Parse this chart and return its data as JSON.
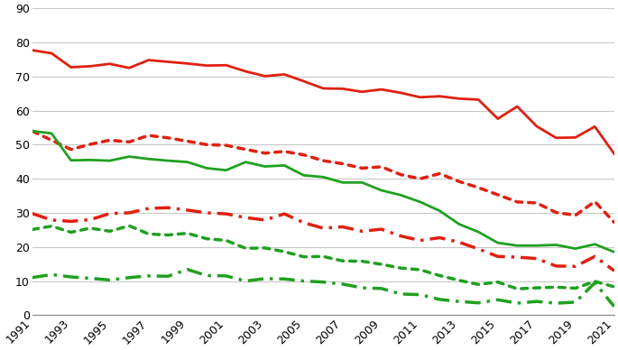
{
  "years": [
    1991,
    1992,
    1993,
    1994,
    1995,
    1996,
    1997,
    1998,
    1999,
    2000,
    2001,
    2002,
    2003,
    2004,
    2005,
    2006,
    2007,
    2008,
    2009,
    2010,
    2011,
    2012,
    2013,
    2014,
    2015,
    2016,
    2017,
    2018,
    2019,
    2020,
    2021
  ],
  "lines": {
    "12th_annual": [
      77.7,
      76.8,
      72.7,
      73.0,
      73.7,
      72.5,
      74.8,
      74.3,
      73.8,
      73.2,
      73.3,
      71.5,
      70.1,
      70.6,
      68.6,
      66.5,
      66.4,
      65.5,
      66.2,
      65.2,
      63.9,
      64.2,
      63.5,
      63.2,
      57.6,
      61.2,
      55.4,
      52.0,
      52.1,
      55.3,
      47.3
    ],
    "12th_month": [
      54.0,
      51.3,
      48.6,
      50.1,
      51.3,
      50.8,
      52.7,
      52.0,
      51.0,
      50.0,
      49.8,
      48.6,
      47.5,
      48.0,
      47.0,
      45.3,
      44.4,
      43.1,
      43.5,
      41.2,
      40.0,
      41.5,
      39.2,
      37.4,
      35.3,
      33.2,
      32.9,
      30.1,
      29.3,
      33.3,
      27.2
    ],
    "12th_2wk": [
      29.8,
      27.9,
      27.5,
      28.0,
      29.8,
      30.0,
      31.3,
      31.5,
      30.8,
      30.0,
      29.7,
      28.6,
      27.9,
      29.7,
      27.1,
      25.5,
      25.9,
      24.6,
      25.2,
      23.2,
      21.9,
      22.7,
      21.4,
      19.4,
      17.2,
      17.0,
      16.6,
      14.4,
      14.3,
      17.2,
      13.0
    ],
    "8th_annual": [
      54.0,
      53.3,
      45.4,
      45.5,
      45.3,
      46.5,
      45.8,
      45.3,
      44.9,
      43.1,
      42.5,
      44.9,
      43.6,
      43.9,
      41.0,
      40.5,
      38.9,
      38.9,
      36.6,
      35.2,
      33.2,
      30.6,
      26.7,
      24.4,
      21.2,
      20.4,
      20.4,
      20.6,
      19.5,
      20.8,
      18.5
    ],
    "8th_month": [
      25.1,
      26.1,
      24.3,
      25.5,
      24.6,
      26.2,
      23.8,
      23.5,
      24.0,
      22.4,
      21.9,
      19.6,
      19.7,
      18.6,
      17.1,
      17.2,
      15.9,
      15.8,
      14.9,
      13.8,
      13.3,
      11.6,
      10.2,
      9.0,
      9.7,
      7.7,
      8.0,
      8.2,
      7.9,
      9.9,
      8.3
    ],
    "8th_2wk": [
      11.0,
      11.9,
      11.2,
      10.8,
      10.3,
      11.0,
      11.5,
      11.4,
      13.4,
      11.6,
      11.5,
      10.0,
      10.7,
      10.6,
      10.0,
      9.7,
      9.1,
      8.0,
      7.8,
      6.2,
      6.0,
      4.6,
      4.0,
      3.6,
      4.5,
      3.5,
      4.0,
      3.5,
      3.8,
      9.5,
      2.5
    ]
  },
  "colors": {
    "12th_annual": "#e02010",
    "12th_month": "#e02010",
    "12th_2wk": "#e02010",
    "8th_annual": "#20a020",
    "8th_month": "#20a020",
    "8th_2wk": "#20a020"
  },
  "linestyles": {
    "12th_annual": "solid",
    "12th_month": "dotted",
    "12th_2wk": "dashdot",
    "8th_annual": "solid",
    "8th_month": "dotted",
    "8th_2wk": "dashdot"
  },
  "linewidths": {
    "12th_annual": 2.0,
    "12th_month": 2.5,
    "12th_2wk": 2.5,
    "8th_annual": 2.0,
    "8th_month": 2.5,
    "8th_2wk": 2.5
  },
  "ylim": [
    0,
    90
  ],
  "yticks": [
    0,
    10,
    20,
    30,
    40,
    50,
    60,
    70,
    80,
    90
  ],
  "xticks_odd": [
    1991,
    1993,
    1995,
    1997,
    1999,
    2001,
    2003,
    2005,
    2007,
    2009,
    2011,
    2013,
    2015,
    2017,
    2019,
    2021
  ],
  "bg_color": "#ffffff",
  "grid_color": "#c8c8c8",
  "tick_fontsize": 9
}
